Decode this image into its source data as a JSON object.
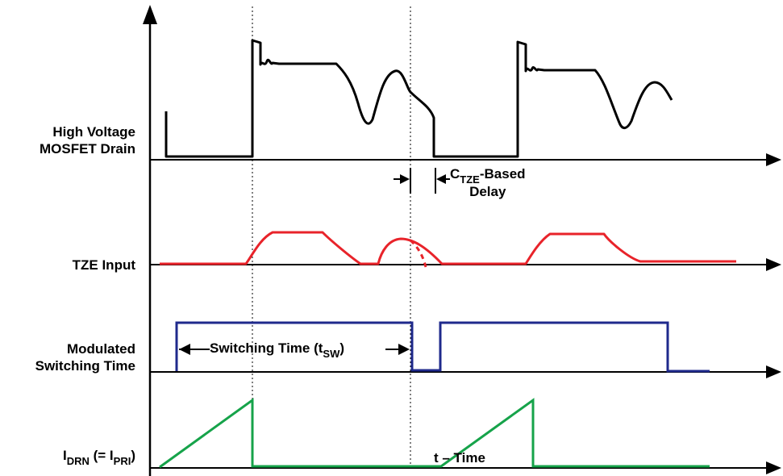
{
  "signals": {
    "drain": {
      "line1": "High Voltage",
      "line2": "MOSFET Drain"
    },
    "tze": {
      "label": "TZE Input"
    },
    "modulated": {
      "line1": "Modulated",
      "line2": "Switching Time"
    },
    "idrn": {
      "main": "I",
      "sub": "DRN",
      "mid": " (= I",
      "sub2": "PRI",
      "end": ")"
    }
  },
  "annotations": {
    "delay": {
      "c": "C",
      "csub": "TZE",
      "rest": "-Based",
      "line2": "Delay"
    },
    "switching": {
      "text": "Switching Time (t",
      "sub": "SW",
      "end": ")"
    }
  },
  "axis": {
    "xlabel": "t – Time"
  },
  "colors": {
    "drain": "#000000",
    "tze": "#e8232a",
    "modulated": "#1f2a8c",
    "idrn": "#16a34a"
  }
}
